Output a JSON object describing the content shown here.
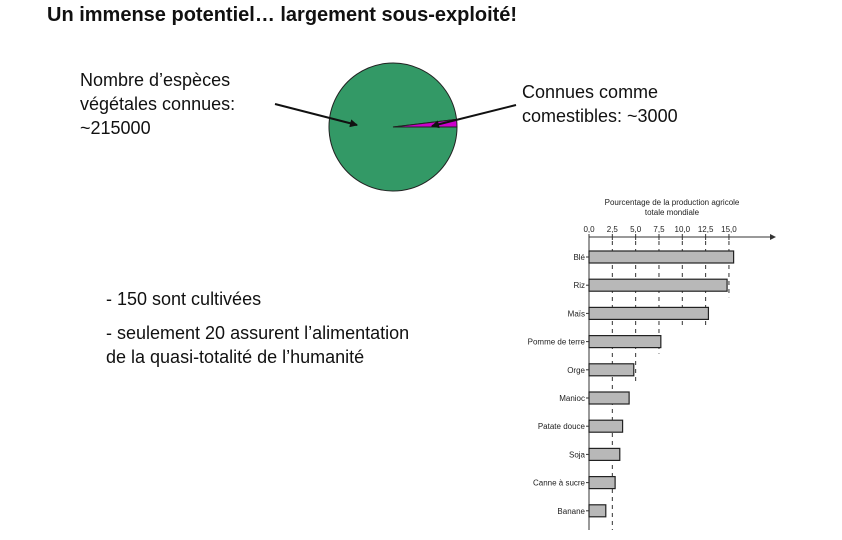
{
  "title": "Un immense potentiel… largement sous-exploité!",
  "pie_labels": {
    "left": [
      "Nombre d’espèces",
      "végétales connues:",
      "~215000"
    ],
    "right": [
      "Connues comme",
      "comestibles: ~3000"
    ]
  },
  "bullets": [
    "- 150 sont cultivées",
    "- seulement 20 assurent l’alimentation",
    "de la quasi-totalité de l’humanité"
  ],
  "colors": {
    "pie_main": "#339966",
    "pie_slice": "#cc00cc",
    "bar_fill": "#b8b8b8",
    "bar_stroke": "#222222"
  },
  "chart_data": [
    {
      "type": "pie",
      "categories": [
        "Nombre d’espèces végétales connues",
        "Connues comme comestibles"
      ],
      "values": [
        215000,
        3000
      ]
    },
    {
      "type": "bar",
      "orientation": "horizontal",
      "title": "Pourcentage de la production agricole totale mondiale",
      "categories": [
        "Blé",
        "Riz",
        "Maïs",
        "Pomme de terre",
        "Orge",
        "Manioc",
        "Patate douce",
        "Soja",
        "Canne à sucre",
        "Banane"
      ],
      "values": [
        15.5,
        14.8,
        12.8,
        7.7,
        4.8,
        4.3,
        3.6,
        3.3,
        2.8,
        1.8
      ],
      "xticks": [
        "0,0",
        "2,5",
        "5,0",
        "7,5",
        "10,0",
        "12,5",
        "15,0"
      ],
      "xlim": [
        0,
        15
      ]
    }
  ]
}
